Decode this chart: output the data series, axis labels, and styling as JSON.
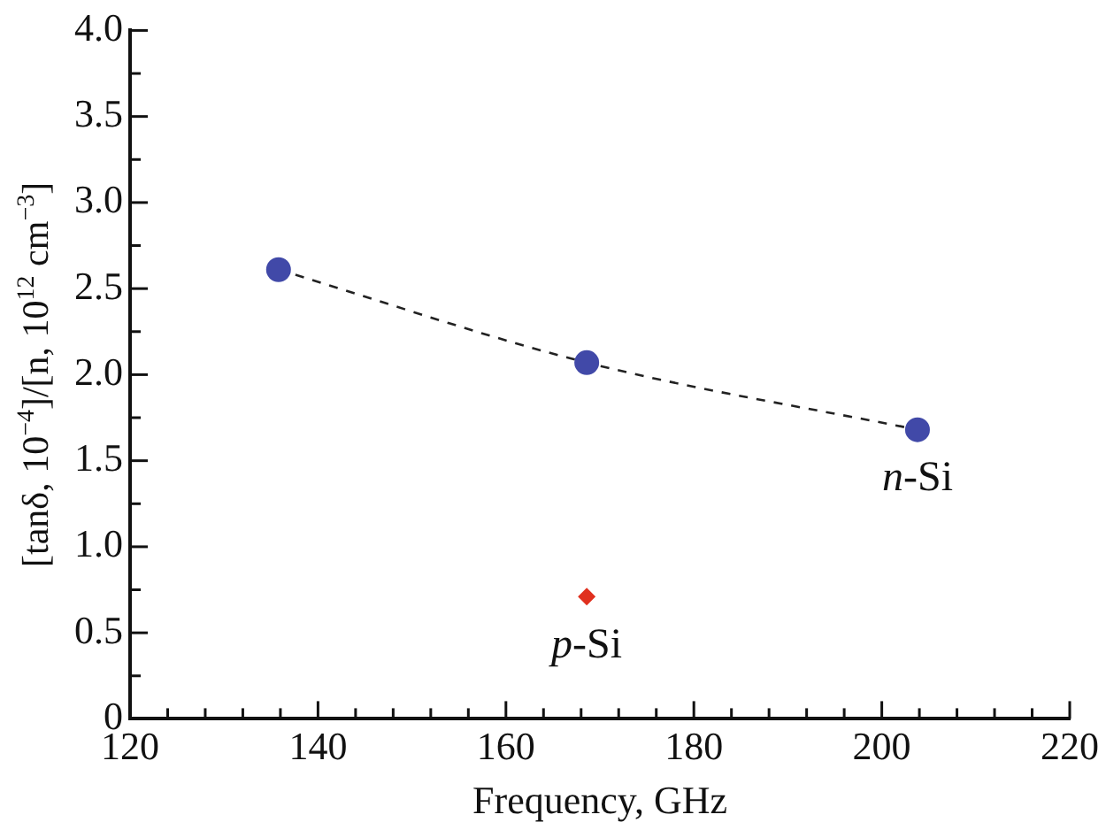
{
  "chart_data": {
    "type": "scatter",
    "xlabel": "Frequency, GHz",
    "ylabel": "[tanδ, 10$^{−4}$]/[n, 10$^{12}$ cm$^{−3}$]",
    "xlim": [
      120,
      220
    ],
    "xticks": [
      120,
      {
        "value": 124,
        "label": null
      },
      {
        "value": 128,
        "label": null
      },
      {
        "value": 132,
        "label": null
      },
      {
        "value": 136,
        "label": null
      },
      140,
      {
        "value": 144,
        "label": null
      },
      {
        "value": 148,
        "label": null
      },
      {
        "value": 152,
        "label": null
      },
      {
        "value": 156,
        "label": null
      },
      160,
      {
        "value": 164,
        "label": null
      },
      {
        "value": 168,
        "label": null
      },
      {
        "value": 172,
        "label": null
      },
      {
        "value": 176,
        "label": null
      },
      180,
      {
        "value": 184,
        "label": null
      },
      {
        "value": 188,
        "label": null
      },
      {
        "value": 192,
        "label": null
      },
      {
        "value": 196,
        "label": null
      },
      200,
      {
        "value": 204,
        "label": null
      },
      {
        "value": 208,
        "label": null
      },
      {
        "value": 212,
        "label": null
      },
      {
        "value": 216,
        "label": null
      },
      220
    ],
    "ylim": [
      0,
      4
    ],
    "yticks": [
      0,
      {
        "value": 0.25,
        "label": null
      },
      {
        "value": 0.5,
        "label": "0.5"
      },
      {
        "value": 0.75,
        "label": null
      },
      {
        "value": 1,
        "label": "1.0"
      },
      {
        "value": 1.25,
        "label": null
      },
      {
        "value": 1.5,
        "label": "1.5"
      },
      {
        "value": 1.75,
        "label": null
      },
      {
        "value": 2,
        "label": "2.0"
      },
      {
        "value": 2.25,
        "label": null
      },
      {
        "value": 2.5,
        "label": "2.5"
      },
      {
        "value": 2.75,
        "label": null
      },
      {
        "value": 3,
        "label": "3.0"
      },
      {
        "value": 3.25,
        "label": null
      },
      {
        "value": 3.5,
        "label": "3.5"
      },
      {
        "value": 3.75,
        "label": null
      },
      {
        "value": 4,
        "label": "4.0"
      }
    ],
    "grid": false,
    "legend": false,
    "series": [
      {
        "name": "n-Si",
        "type": "line",
        "color": "#4149a8",
        "marker": "circle",
        "line_style": "dashed",
        "x": [
          135.8,
          168.6,
          203.8
        ],
        "values": [
          2.61,
          2.07,
          1.68
        ]
      },
      {
        "name": "p-Si",
        "color": "#e0301e",
        "marker": "diamond",
        "x": [
          168.6
        ],
        "values": [
          0.71
        ]
      }
    ]
  }
}
